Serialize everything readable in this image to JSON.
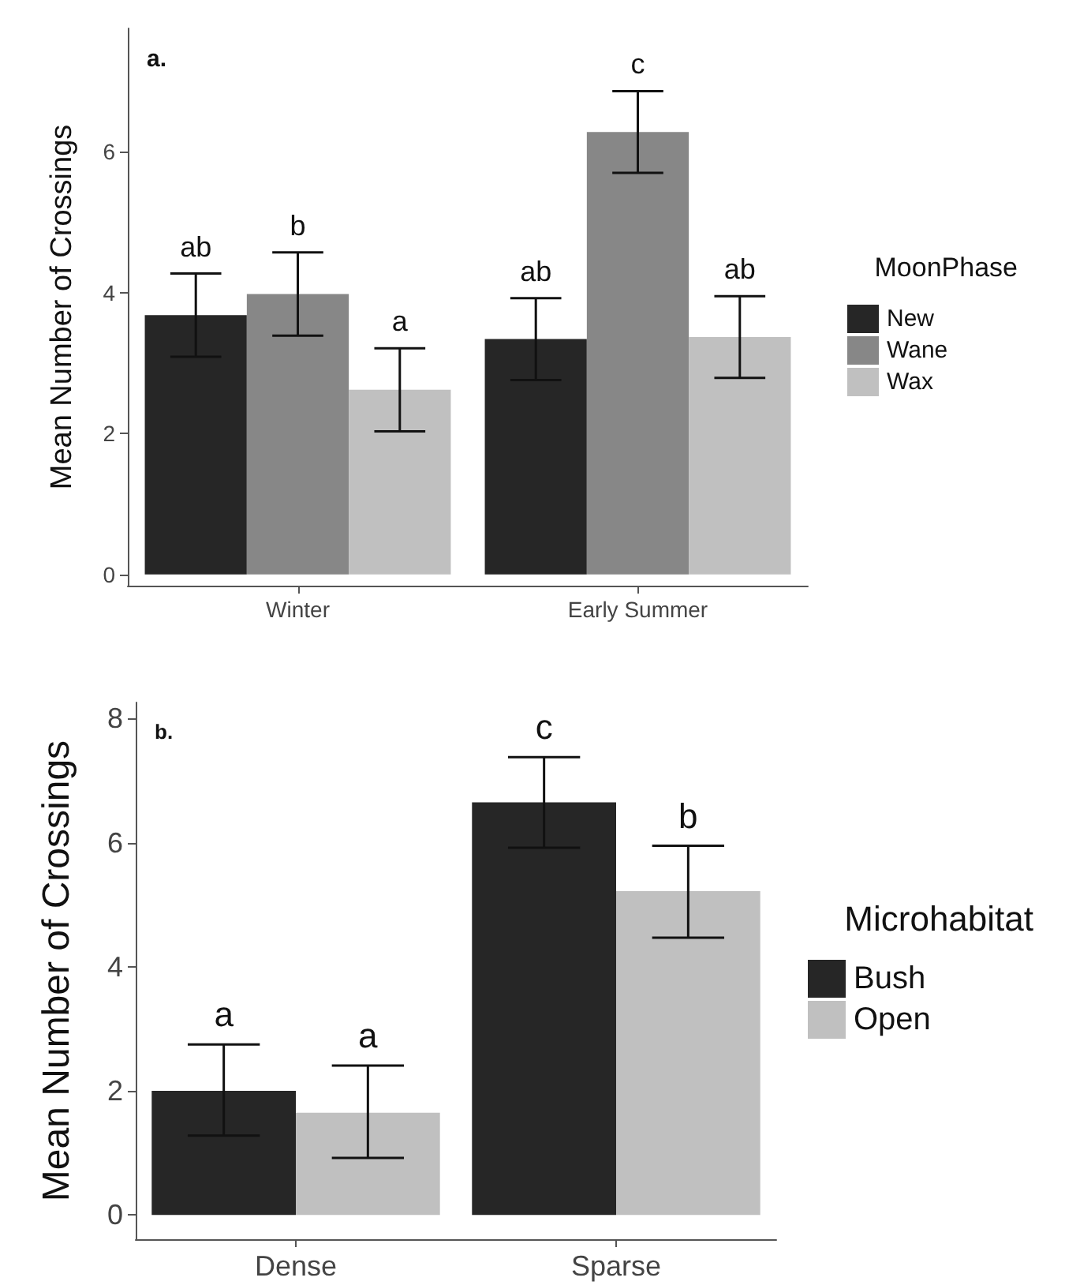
{
  "chart_data": [
    {
      "type": "bar",
      "ylabel": "Mean Number of Crossings",
      "legend_title": "MoonPhase",
      "categories": [
        "Winter",
        "Early Summer"
      ],
      "ylim": [
        -0.16,
        7.75
      ],
      "yticks": [
        0,
        2,
        4,
        6
      ],
      "grid": false,
      "legend": "right",
      "annotations": [
        "a."
      ],
      "series": [
        {
          "name": "New",
          "color": "#262626",
          "values": [
            3.68,
            3.34
          ],
          "errors": [
            0.59,
            0.58
          ],
          "value_labels": [
            "ab",
            "ab"
          ]
        },
        {
          "name": "Wane",
          "color": "#878787",
          "values": [
            3.98,
            6.28
          ],
          "errors": [
            0.59,
            0.58
          ],
          "value_labels": [
            "b",
            "c"
          ]
        },
        {
          "name": "Wax",
          "color": "#c0c0c0",
          "values": [
            2.62,
            3.37
          ],
          "errors": [
            0.59,
            0.58
          ],
          "value_labels": [
            "a",
            "ab"
          ]
        }
      ]
    },
    {
      "type": "bar",
      "ylabel": "Mean Number of Crossings",
      "legend_title": "Microhabitat",
      "categories": [
        "Dense",
        "Sparse"
      ],
      "ylim": [
        -0.39,
        8.26
      ],
      "yticks": [
        0,
        2,
        4,
        6,
        8
      ],
      "grid": false,
      "legend": "right",
      "annotations": [
        "b."
      ],
      "series": [
        {
          "name": "Bush",
          "color": "#262626",
          "values": [
            2.0,
            6.65
          ],
          "errors": [
            [
              1.28,
              2.75
            ],
            [
              5.92,
              7.38
            ]
          ],
          "value_labels": [
            "a",
            "c"
          ]
        },
        {
          "name": "Open",
          "color": "#c0c0c0",
          "values": [
            1.65,
            5.22
          ],
          "errors": [
            [
              0.92,
              2.41
            ],
            [
              4.47,
              5.95
            ]
          ],
          "value_labels": [
            "a",
            "b"
          ]
        }
      ]
    }
  ]
}
